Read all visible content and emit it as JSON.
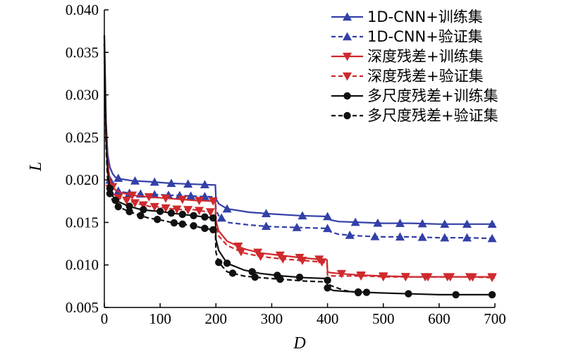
{
  "chart_data": {
    "type": "line",
    "xlabel": "D",
    "ylabel": "L",
    "xlim": [
      0,
      700
    ],
    "ylim": [
      0.005,
      0.04
    ],
    "x_ticks": [
      0,
      100,
      200,
      300,
      400,
      500,
      600,
      700
    ],
    "x_tick_labels": [
      "0",
      "100",
      "200",
      "300",
      "400",
      "500",
      "600",
      "700"
    ],
    "y_ticks": [
      0.005,
      0.01,
      0.015,
      0.02,
      0.025,
      0.03,
      0.035,
      0.04
    ],
    "y_tick_labels": [
      "0.005",
      "0.010",
      "0.015",
      "0.020",
      "0.025",
      "0.030",
      "0.035",
      "0.040"
    ],
    "grid": false,
    "legend_position": "top-right",
    "series": [
      {
        "name": "1D-CNN+训练集",
        "color": "#3340a8",
        "dash": "solid",
        "marker": "triangle-up",
        "x": [
          0,
          3,
          6,
          10,
          15,
          20,
          30,
          50,
          80,
          120,
          160,
          199,
          200,
          205,
          220,
          260,
          300,
          350,
          400,
          405,
          420,
          460,
          500,
          550,
          600,
          650,
          700
        ],
        "y": [
          0.037,
          0.027,
          0.023,
          0.0215,
          0.0207,
          0.0203,
          0.0201,
          0.0199,
          0.0198,
          0.0196,
          0.0195,
          0.0194,
          0.0178,
          0.0172,
          0.0166,
          0.0162,
          0.016,
          0.0158,
          0.0157,
          0.0153,
          0.0151,
          0.015,
          0.0149,
          0.0149,
          0.0148,
          0.0148,
          0.0148
        ],
        "marker_x": [
          25,
          55,
          90,
          120,
          150,
          180,
          220,
          290,
          355,
          400,
          450,
          490,
          530,
          570,
          610,
          650,
          695
        ]
      },
      {
        "name": "1D-CNN+验证集",
        "color": "#3340a8",
        "dash": "dashed",
        "marker": "triangle-up",
        "x": [
          0,
          3,
          6,
          10,
          15,
          20,
          30,
          50,
          80,
          120,
          160,
          199,
          200,
          205,
          220,
          260,
          300,
          350,
          400,
          405,
          420,
          460,
          500,
          550,
          600,
          650,
          700
        ],
        "y": [
          0.036,
          0.026,
          0.022,
          0.02,
          0.0192,
          0.0188,
          0.0186,
          0.0184,
          0.0183,
          0.0182,
          0.0181,
          0.018,
          0.0165,
          0.0158,
          0.015,
          0.0147,
          0.0145,
          0.0144,
          0.0143,
          0.0139,
          0.0136,
          0.0134,
          0.0133,
          0.0133,
          0.0132,
          0.0132,
          0.0131
        ],
        "marker_x": [
          10,
          25,
          45,
          65,
          90,
          115,
          135,
          155,
          180,
          210,
          290,
          345,
          400,
          440,
          485,
          530,
          570,
          610,
          650,
          695
        ]
      },
      {
        "name": "深度残差+训练集",
        "color": "#cf2a2d",
        "dash": "solid",
        "marker": "triangle-down",
        "x": [
          0,
          3,
          6,
          10,
          15,
          20,
          30,
          50,
          80,
          120,
          160,
          199,
          200,
          205,
          220,
          250,
          280,
          320,
          360,
          399,
          400,
          405,
          420,
          460,
          500,
          550,
          600,
          650,
          700
        ],
        "y": [
          0.036,
          0.026,
          0.022,
          0.02,
          0.0192,
          0.0188,
          0.0185,
          0.0182,
          0.018,
          0.0178,
          0.0176,
          0.0175,
          0.0152,
          0.014,
          0.0128,
          0.0119,
          0.0114,
          0.0111,
          0.0108,
          0.0106,
          0.0092,
          0.0091,
          0.009,
          0.0088,
          0.0087,
          0.0086,
          0.0086,
          0.0086,
          0.0086
        ],
        "marker_x": [
          15,
          50,
          80,
          110,
          140,
          170,
          195,
          240,
          275,
          315,
          350,
          385,
          425,
          460,
          500,
          540,
          575,
          615,
          655,
          695
        ]
      },
      {
        "name": "深度残差+验证集",
        "color": "#cf2a2d",
        "dash": "dashed",
        "marker": "triangle-down",
        "x": [
          0,
          3,
          6,
          10,
          15,
          20,
          40,
          60,
          80,
          100,
          120,
          140,
          160,
          180,
          199,
          200,
          205,
          220,
          250,
          280,
          320,
          360,
          399,
          400,
          410,
          430,
          470,
          500,
          550,
          600,
          650,
          700
        ],
        "y": [
          0.035,
          0.025,
          0.021,
          0.019,
          0.0184,
          0.018,
          0.0176,
          0.0172,
          0.0169,
          0.0168,
          0.0166,
          0.0165,
          0.0165,
          0.0163,
          0.0162,
          0.0145,
          0.0134,
          0.0123,
          0.0114,
          0.011,
          0.0107,
          0.0105,
          0.0103,
          0.0088,
          0.0087,
          0.0087,
          0.0087,
          0.0086,
          0.0086,
          0.0086,
          0.0086,
          0.0085
        ],
        "marker_x": [
          10,
          25,
          40,
          55,
          70,
          90,
          110,
          130,
          150,
          170,
          190,
          245,
          280,
          320,
          355,
          390,
          460,
          500,
          540,
          580,
          620,
          660,
          695
        ]
      },
      {
        "name": "多尺度残差+训练集",
        "color": "#111111",
        "dash": "solid",
        "marker": "circle",
        "x": [
          0,
          3,
          6,
          10,
          15,
          20,
          40,
          60,
          80,
          100,
          120,
          160,
          199,
          200,
          205,
          220,
          250,
          280,
          320,
          360,
          399,
          400,
          410,
          430,
          460,
          500,
          550,
          600,
          650,
          700
        ],
        "y": [
          0.037,
          0.025,
          0.021,
          0.019,
          0.0181,
          0.0176,
          0.017,
          0.0166,
          0.0164,
          0.0163,
          0.0161,
          0.0158,
          0.0155,
          0.013,
          0.0117,
          0.0102,
          0.0094,
          0.009,
          0.0087,
          0.0085,
          0.0084,
          0.0073,
          0.007,
          0.0069,
          0.0068,
          0.0067,
          0.0066,
          0.0065,
          0.0065,
          0.0065
        ],
        "marker_x": [
          10,
          20,
          45,
          70,
          100,
          120,
          140,
          160,
          180,
          195,
          220,
          265,
          310,
          350,
          400,
          455,
          470,
          545,
          630,
          695
        ]
      },
      {
        "name": "多尺度残差+验证集",
        "color": "#111111",
        "dash": "dashed",
        "marker": "circle",
        "x": [
          0,
          3,
          6,
          10,
          15,
          20,
          40,
          60,
          80,
          100,
          120,
          140,
          160,
          180,
          199,
          200,
          205,
          220,
          250,
          280,
          320,
          360,
          399,
          400,
          405,
          430,
          460
        ],
        "y": [
          0.036,
          0.024,
          0.02,
          0.0184,
          0.0175,
          0.017,
          0.0164,
          0.0159,
          0.0155,
          0.0153,
          0.015,
          0.0148,
          0.0146,
          0.0143,
          0.0141,
          0.0115,
          0.0103,
          0.0092,
          0.0087,
          0.0085,
          0.0083,
          0.0081,
          0.008,
          0.0082,
          0.0076,
          0.007,
          0.0067
        ],
        "marker_x": [
          10,
          25,
          45,
          65,
          95,
          125,
          140,
          160,
          180,
          195,
          205,
          230,
          270,
          315,
          400,
          455
        ]
      }
    ]
  }
}
